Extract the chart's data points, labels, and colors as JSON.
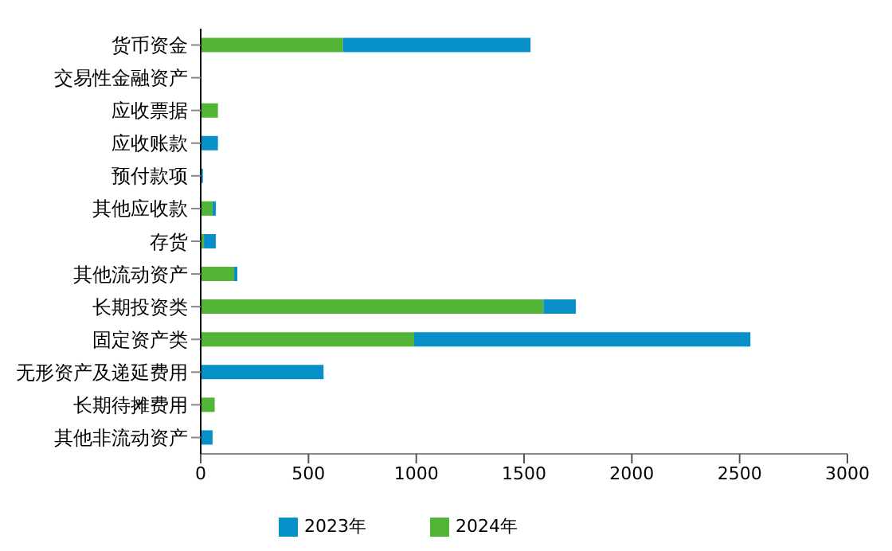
{
  "chart_data": {
    "type": "bar",
    "orientation": "horizontal",
    "stacked": true,
    "categories": [
      "货币资金",
      "交易性金融资产",
      "应收票据",
      "应收账款",
      "预付款项",
      "其他应收款",
      "存货",
      "其他流动资产",
      "长期投资类",
      "固定资产类",
      "无形资产及递延费用",
      "长期待摊费用",
      "其他非流动资产"
    ],
    "series": [
      {
        "name": "2024年",
        "color": "#52b535",
        "values": [
          660,
          null,
          80,
          null,
          null,
          55,
          15,
          155,
          1590,
          990,
          null,
          65,
          null
        ]
      },
      {
        "name": "2023年",
        "color": "#078fc8",
        "values": [
          870,
          null,
          null,
          80,
          10,
          15,
          55,
          15,
          150,
          1560,
          570,
          null,
          55
        ]
      }
    ],
    "xlim": [
      0,
      3000
    ],
    "xticks": [
      0,
      500,
      1000,
      1500,
      2000,
      2500,
      3000
    ],
    "legend": "bottom",
    "grid": false
  }
}
